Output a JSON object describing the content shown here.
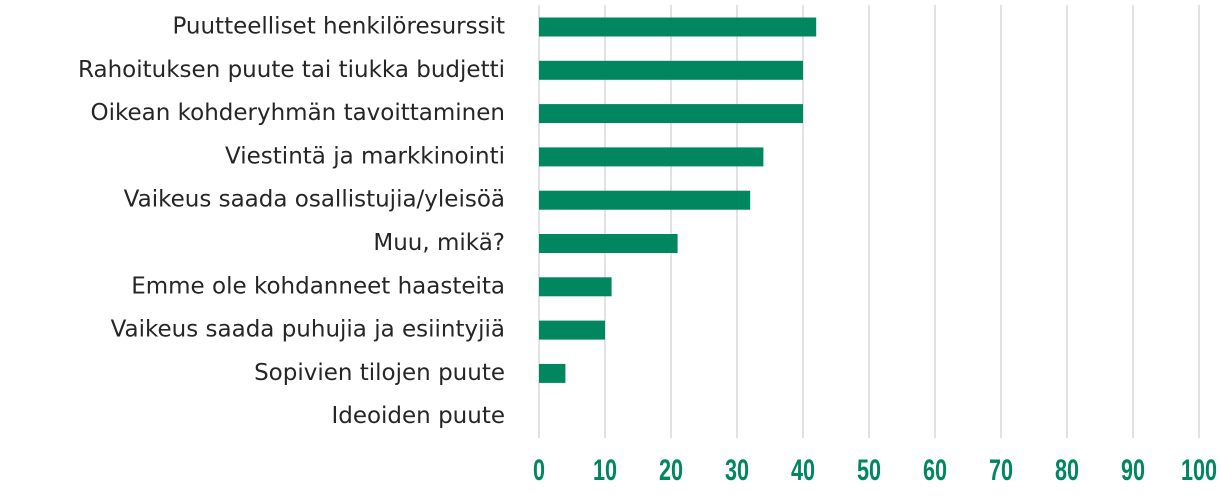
{
  "chart_data": {
    "type": "barh",
    "categories": [
      "Puutteelliset henkilöresurssit",
      "Rahoituksen puute tai tiukka budjetti",
      "Oikean kohderyhmän tavoittaminen",
      "Viestintä ja markkinointi",
      "Vaikeus saada osallistujia/yleisöä",
      "Muu, mikä?",
      "Emme ole kohdanneet haasteita",
      "Vaikeus saada puhujia ja esiintyjiä",
      "Sopivien tilojen puute",
      "Ideoiden puute"
    ],
    "values": [
      42,
      40,
      40,
      34,
      32,
      21,
      11,
      10,
      4,
      0
    ],
    "color": "#00875f",
    "xlim": [
      0,
      100
    ],
    "xticks": [
      0,
      10,
      20,
      30,
      40,
      50,
      60,
      70,
      80,
      90,
      100
    ],
    "grid": true
  }
}
